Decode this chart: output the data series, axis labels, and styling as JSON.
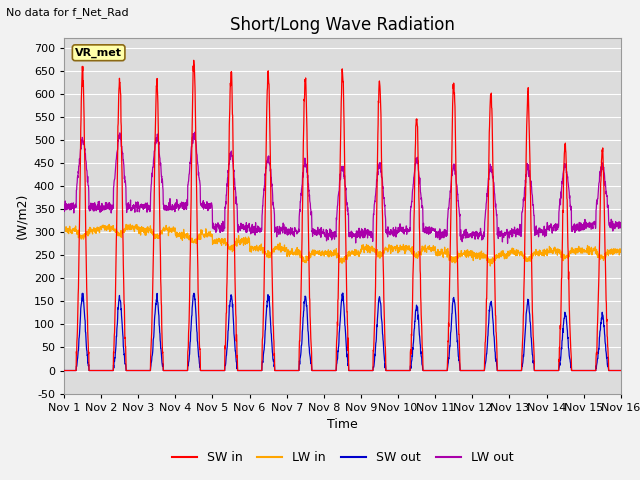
{
  "title": "Short/Long Wave Radiation",
  "xlabel": "Time",
  "ylabel": "(W/m2)",
  "top_left_text": "No data for f_Net_Rad",
  "station_label": "VR_met",
  "ylim": [
    -50,
    720
  ],
  "xtick_labels": [
    "Nov 1",
    "Nov 2",
    "Nov 3",
    "Nov 4",
    "Nov 5",
    "Nov 6",
    "Nov 7",
    "Nov 8",
    "Nov 9",
    "Nov 10",
    "Nov 11",
    "Nov 12",
    "Nov 13",
    "Nov 14",
    "Nov 15",
    "Nov 16"
  ],
  "colors": {
    "SW_in": "#ff0000",
    "LW_in": "#ffa500",
    "SW_out": "#0000cc",
    "LW_out": "#aa00aa"
  },
  "background_color": "#dcdcdc",
  "grid_color": "#ffffff",
  "title_fontsize": 12,
  "label_fontsize": 9,
  "tick_fontsize": 8
}
